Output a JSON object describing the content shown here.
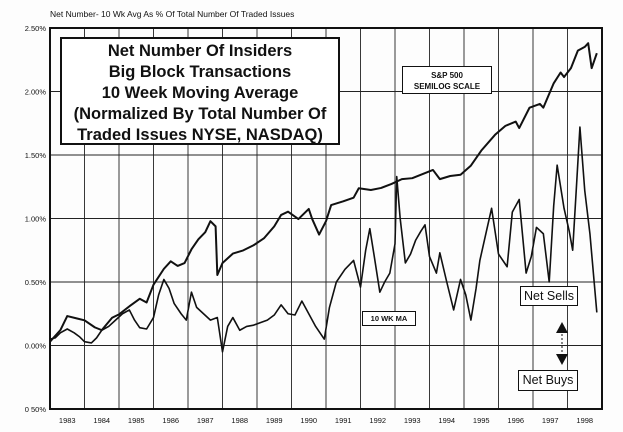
{
  "chart_data": {
    "type": "line",
    "title_lines": [
      "Net Number Of Insiders",
      "Big Block Transactions",
      "10 Week Moving Average",
      "(Normalized By Total Number Of",
      "Traded Issues NYSE, NASDAQ)"
    ],
    "ylabel": "Net Number- 10 Wk Avg  As % Of Total Number Of Traded Issues",
    "ylim": [
      -0.5,
      2.5
    ],
    "yticks": [
      {
        "v": 2.5,
        "label": "2.50%"
      },
      {
        "v": 2.0,
        "label": "2.00%"
      },
      {
        "v": 1.5,
        "label": "1.50%"
      },
      {
        "v": 1.0,
        "label": "1.00%"
      },
      {
        "v": 0.5,
        "label": "0.50%"
      },
      {
        "v": 0.0,
        "label": "0.00%"
      },
      {
        "v": -0.5,
        "label": "0 50%"
      }
    ],
    "xlim": [
      1983,
      1999
    ],
    "xticks": [
      "1983",
      "1984",
      "1985",
      "1986",
      "1987",
      "1988",
      "1989",
      "1990",
      "1991",
      "1992",
      "1993",
      "1994",
      "1995",
      "1996",
      "1997",
      "1998"
    ],
    "grid": true,
    "annotations": {
      "sp_label": [
        "S&P 500",
        "SEMILOG SCALE"
      ],
      "ma_label": "10 WK MA",
      "net_sells": "Net Sells",
      "net_buys": "Net Buys"
    },
    "series": [
      {
        "name": "10 WK MA",
        "x": [
          1983.0,
          1983.15,
          1983.3,
          1983.5,
          1983.7,
          1983.85,
          1984.0,
          1984.2,
          1984.35,
          1984.5,
          1984.7,
          1984.9,
          1985.1,
          1985.3,
          1985.45,
          1985.6,
          1985.8,
          1986.0,
          1986.15,
          1986.3,
          1986.45,
          1986.6,
          1986.8,
          1986.95,
          1987.1,
          1987.25,
          1987.45,
          1987.65,
          1987.85,
          1988.0,
          1988.15,
          1988.3,
          1988.5,
          1988.7,
          1988.9,
          1989.1,
          1989.3,
          1989.5,
          1989.7,
          1989.9,
          1990.1,
          1990.3,
          1990.5,
          1990.7,
          1990.95,
          1991.1,
          1991.3,
          1991.55,
          1991.8,
          1992.0,
          1992.15,
          1992.27,
          1992.4,
          1992.56,
          1992.7,
          1992.85,
          1993.0,
          1993.05,
          1993.15,
          1993.3,
          1993.45,
          1993.6,
          1993.75,
          1993.87,
          1994.0,
          1994.2,
          1994.3,
          1994.5,
          1994.7,
          1994.9,
          1995.05,
          1995.2,
          1995.35,
          1995.46,
          1995.65,
          1995.8,
          1996.0,
          1996.25,
          1996.4,
          1996.6,
          1996.8,
          1996.95,
          1997.1,
          1997.3,
          1997.47,
          1997.6,
          1997.7,
          1997.9,
          1998.05,
          1998.15,
          1998.27,
          1998.36,
          1998.5,
          1998.65,
          1998.85
        ],
        "values": [
          0.05,
          0.06,
          0.1,
          0.13,
          0.1,
          0.07,
          0.03,
          0.02,
          0.06,
          0.12,
          0.15,
          0.2,
          0.25,
          0.28,
          0.2,
          0.14,
          0.13,
          0.22,
          0.4,
          0.52,
          0.45,
          0.33,
          0.25,
          0.2,
          0.42,
          0.3,
          0.25,
          0.2,
          0.22,
          -0.05,
          0.15,
          0.22,
          0.12,
          0.15,
          0.16,
          0.18,
          0.2,
          0.24,
          0.32,
          0.25,
          0.24,
          0.35,
          0.25,
          0.15,
          0.05,
          0.3,
          0.5,
          0.6,
          0.67,
          0.46,
          0.75,
          0.92,
          0.7,
          0.42,
          0.5,
          0.57,
          0.8,
          1.33,
          1.0,
          0.65,
          0.72,
          0.83,
          0.9,
          0.95,
          0.7,
          0.57,
          0.73,
          0.5,
          0.28,
          0.52,
          0.4,
          0.2,
          0.45,
          0.67,
          0.9,
          1.08,
          0.72,
          0.62,
          1.05,
          1.15,
          0.57,
          0.7,
          0.93,
          0.88,
          0.5,
          1.1,
          1.42,
          1.08,
          0.9,
          0.75,
          1.3,
          1.72,
          1.22,
          0.88,
          0.26
        ]
      },
      {
        "name": "S&P 500",
        "scale": "semilog",
        "x": [
          1983.0,
          1983.3,
          1983.5,
          1983.8,
          1984.0,
          1984.3,
          1984.5,
          1984.8,
          1985.0,
          1985.3,
          1985.6,
          1985.8,
          1986.0,
          1986.3,
          1986.5,
          1986.7,
          1986.9,
          1987.1,
          1987.3,
          1987.5,
          1987.65,
          1987.8,
          1987.85,
          1988.0,
          1988.3,
          1988.6,
          1988.9,
          1989.2,
          1989.5,
          1989.7,
          1989.9,
          1990.2,
          1990.5,
          1990.6,
          1990.8,
          1991.0,
          1991.15,
          1991.5,
          1991.8,
          1991.95,
          1992.3,
          1992.6,
          1992.9,
          1993.2,
          1993.5,
          1993.9,
          1994.1,
          1994.3,
          1994.6,
          1994.9,
          1995.2,
          1995.5,
          1995.9,
          1996.2,
          1996.5,
          1996.6,
          1996.9,
          1997.2,
          1997.3,
          1997.6,
          1997.8,
          1997.9,
          1998.1,
          1998.3,
          1998.5,
          1998.6,
          1998.7,
          1998.85
        ],
        "values": [
          140,
          152,
          168,
          165,
          163,
          155,
          152,
          166,
          170,
          180,
          190,
          185,
          210,
          235,
          248,
          240,
          245,
          270,
          290,
          305,
          330,
          318,
          225,
          245,
          262,
          268,
          278,
          292,
          318,
          345,
          353,
          335,
          360,
          335,
          300,
          330,
          370,
          380,
          390,
          417,
          412,
          418,
          430,
          445,
          448,
          466,
          475,
          445,
          455,
          459,
          490,
          545,
          610,
          650,
          670,
          640,
          740,
          760,
          740,
          880,
          950,
          920,
          980,
          1110,
          1140,
          1170,
          980,
          1090
        ]
      }
    ],
    "colors": {
      "line": "#111111",
      "grid": "#222222",
      "background": "#fdfdfd"
    }
  }
}
